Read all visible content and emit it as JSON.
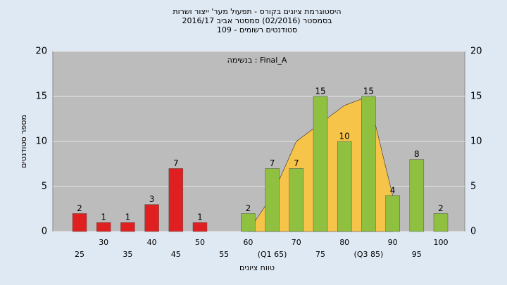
{
  "chart_data": {
    "type": "bar",
    "title": [
      "היסטוגרמת ציונים בקורס - תפעול מער' ייצור ושרות",
      "בסמסטר (02/2016)  סמסטר אביב 2016/17",
      "סטודנטים רשומים - 109"
    ],
    "annotation": "בנשימה : Final_A",
    "x_label": "טווח ציונים",
    "y_label": "מספר סטודנטים",
    "categories": [
      "25",
      "30",
      "35",
      "40",
      "45",
      "50",
      "55",
      "60",
      "(Q1 65)",
      "70",
      "75",
      "80",
      "(Q3 85)",
      "90",
      "95",
      "100"
    ],
    "values": [
      2,
      1,
      1,
      3,
      7,
      1,
      null,
      2,
      7,
      7,
      15,
      10,
      15,
      4,
      8,
      2
    ],
    "colors": [
      "#e02020",
      "#e02020",
      "#e02020",
      "#e02020",
      "#e02020",
      "#e02020",
      "#e02020",
      "#8fc040",
      "#8fc040",
      "#8fc040",
      "#8fc040",
      "#8fc040",
      "#8fc040",
      "#8fc040",
      "#8fc040",
      "#8fc040"
    ],
    "area": {
      "values": [
        null,
        null,
        null,
        null,
        null,
        null,
        null,
        0,
        4,
        10,
        12,
        14,
        15,
        4,
        null,
        null
      ],
      "color": "#f7c44a"
    },
    "ylim": [
      0,
      20
    ],
    "yticks": [
      0,
      5,
      10,
      15,
      20
    ],
    "grid": true
  }
}
